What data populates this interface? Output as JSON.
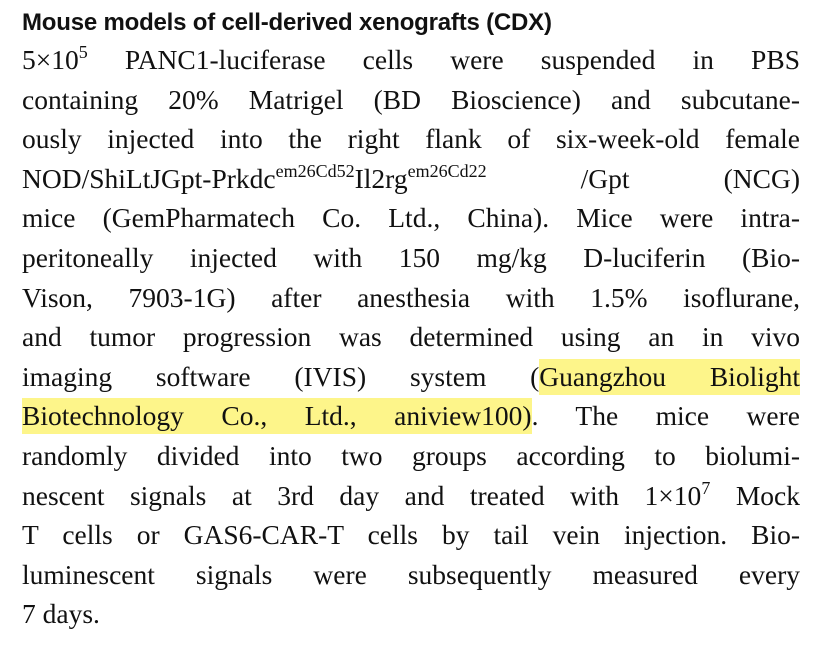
{
  "section": {
    "heading": "Mouse models of cell-derived xenografts (CDX)"
  },
  "paragraph": {
    "lines": [
      {
        "parts": [
          {
            "t": "5×10"
          },
          {
            "t": "5",
            "sup": true
          },
          {
            "t": " PANC1-luciferase cells were suspended in PBS"
          }
        ]
      },
      {
        "parts": [
          {
            "t": "containing 20% Matrigel (BD Bioscience) and subcutane-"
          }
        ]
      },
      {
        "parts": [
          {
            "t": "ously injected into the right flank of six-week-old female"
          }
        ]
      },
      {
        "parts": [
          {
            "t": "NOD/ShiLtJGpt-Prkdc"
          },
          {
            "t": "em26Cd52",
            "sup": true
          },
          {
            "t": "Il2rg"
          },
          {
            "t": "em26Cd22",
            "sup": true
          },
          {
            "t": " /Gpt (NCG)"
          }
        ]
      },
      {
        "parts": [
          {
            "t": "mice (GemPharmatech Co. Ltd., China). Mice were intra-"
          }
        ]
      },
      {
        "parts": [
          {
            "t": "peritoneally injected with 150 mg/kg D-luciferin (Bio-"
          }
        ]
      },
      {
        "parts": [
          {
            "t": "Vison, 7903-1G) after anesthesia with 1.5% isoflurane,"
          }
        ]
      },
      {
        "parts": [
          {
            "t": "and tumor progression was determined using an in vivo"
          }
        ]
      },
      {
        "parts": [
          {
            "t": "imaging software (IVIS) system ("
          },
          {
            "t": "Guangzhou Biolight",
            "hl": true
          }
        ]
      },
      {
        "parts": [
          {
            "t": "Biotechnology Co., Ltd., aniview100)",
            "hl": true
          },
          {
            "t": ". The mice were"
          }
        ]
      },
      {
        "parts": [
          {
            "t": "randomly divided into two groups according to biolumi-"
          }
        ]
      },
      {
        "parts": [
          {
            "t": "nescent signals at 3rd day and treated with 1×10"
          },
          {
            "t": "7",
            "sup": true
          },
          {
            "t": " Mock"
          }
        ]
      },
      {
        "parts": [
          {
            "t": "T cells or GAS6-CAR-T cells by tail vein injection. Bio-"
          }
        ]
      },
      {
        "parts": [
          {
            "t": "luminescent signals were subsequently measured every"
          }
        ]
      },
      {
        "parts": [
          {
            "t": "7 days."
          }
        ]
      }
    ]
  },
  "colors": {
    "text": "#111111",
    "highlight": "#fdf58a"
  }
}
